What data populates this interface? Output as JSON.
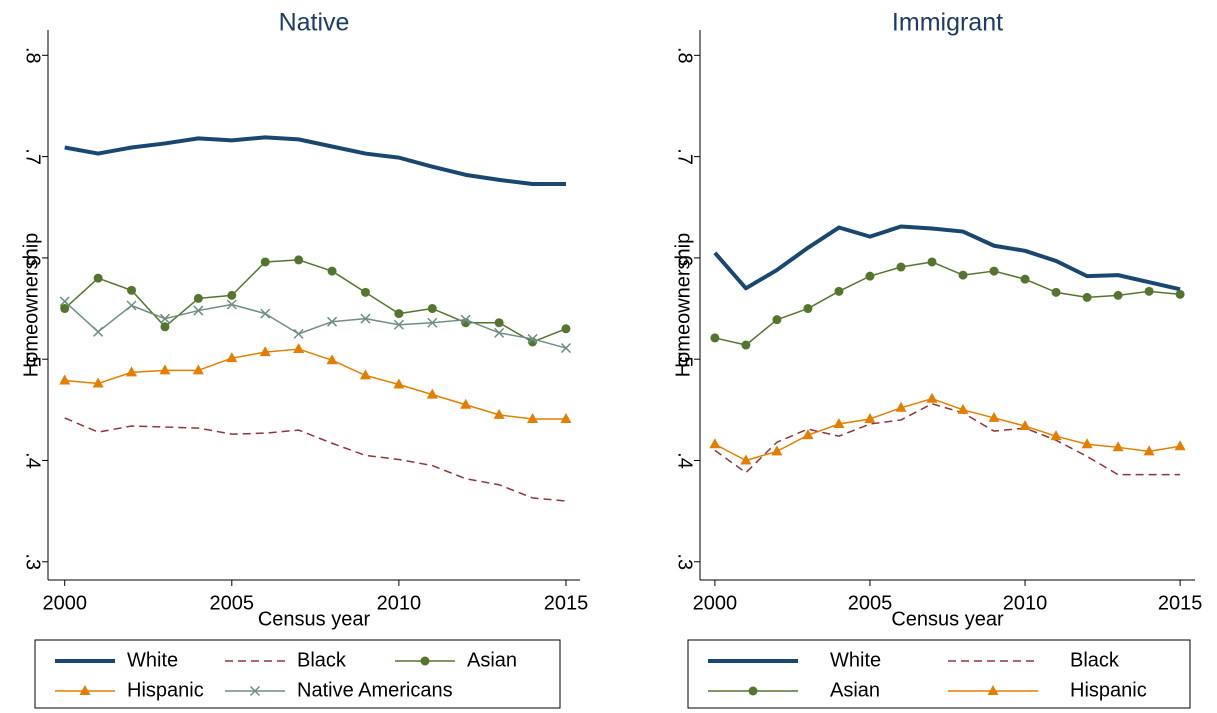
{
  "chart_data": [
    {
      "type": "line",
      "title": "Native",
      "xlabel": "Census year",
      "ylabel": "Homeownership",
      "x": [
        2000,
        2001,
        2002,
        2003,
        2004,
        2005,
        2006,
        2007,
        2008,
        2009,
        2010,
        2011,
        2012,
        2013,
        2014,
        2015
      ],
      "xlim": [
        1999.5,
        2015.42
      ],
      "xticks": [
        2000,
        2005,
        2010,
        2015
      ],
      "ylim": [
        0.282,
        0.825
      ],
      "yticks": [
        {
          "value": 0.3,
          "label": ".3"
        },
        {
          "value": 0.4,
          "label": ".4"
        },
        {
          "value": 0.5,
          "label": ".5"
        },
        {
          "value": 0.6,
          "label": ".6"
        },
        {
          "value": 0.7,
          "label": ".7"
        },
        {
          "value": 0.8,
          "label": ".8"
        }
      ],
      "legend_columns": 3,
      "series": [
        {
          "name": "White",
          "color": "#1a476f",
          "dash": "solid",
          "width": 4,
          "marker": "none",
          "values": [
            0.709,
            0.703,
            0.709,
            0.713,
            0.718,
            0.716,
            0.719,
            0.717,
            0.71,
            0.703,
            0.699,
            0.69,
            0.682,
            0.677,
            0.673,
            0.673
          ]
        },
        {
          "name": "Black",
          "color": "#90353b",
          "dash": "dash",
          "width": 1.5,
          "marker": "none",
          "values": [
            0.442,
            0.428,
            0.434,
            0.433,
            0.432,
            0.426,
            0.427,
            0.43,
            0.417,
            0.405,
            0.401,
            0.395,
            0.382,
            0.376,
            0.363,
            0.36
          ]
        },
        {
          "name": "Asian",
          "color": "#55752f",
          "dash": "solid",
          "width": 1.5,
          "marker": "circle",
          "values": [
            0.55,
            0.58,
            0.568,
            0.532,
            0.56,
            0.563,
            0.596,
            0.598,
            0.587,
            0.566,
            0.545,
            0.55,
            0.536,
            0.536,
            0.517,
            0.53
          ]
        },
        {
          "name": "Hispanic",
          "color": "#e37e00",
          "dash": "solid",
          "width": 1.5,
          "marker": "triangle",
          "values": [
            0.479,
            0.476,
            0.487,
            0.489,
            0.489,
            0.501,
            0.507,
            0.51,
            0.499,
            0.484,
            0.475,
            0.465,
            0.455,
            0.445,
            0.441,
            0.441
          ]
        },
        {
          "name": "Native Americans",
          "color": "#6e8e84",
          "dash": "solid",
          "width": 1.5,
          "marker": "x",
          "values": [
            0.557,
            0.527,
            0.553,
            0.54,
            0.548,
            0.554,
            0.545,
            0.525,
            0.537,
            0.54,
            0.534,
            0.536,
            0.539,
            0.526,
            0.52,
            0.511
          ]
        }
      ]
    },
    {
      "type": "line",
      "title": "Immigrant",
      "xlabel": "Census year",
      "ylabel": "Homeownership",
      "x": [
        2000,
        2001,
        2002,
        2003,
        2004,
        2005,
        2006,
        2007,
        2008,
        2009,
        2010,
        2011,
        2012,
        2013,
        2014,
        2015
      ],
      "xlim": [
        1999.52,
        2015.48
      ],
      "xticks": [
        2000,
        2005,
        2010,
        2015
      ],
      "ylim": [
        0.282,
        0.825
      ],
      "yticks": [
        {
          "value": 0.3,
          "label": ".3"
        },
        {
          "value": 0.4,
          "label": ".4"
        },
        {
          "value": 0.5,
          "label": ".5"
        },
        {
          "value": 0.6,
          "label": ".6"
        },
        {
          "value": 0.7,
          "label": ".7"
        },
        {
          "value": 0.8,
          "label": ".8"
        }
      ],
      "legend_columns": 2,
      "series": [
        {
          "name": "White",
          "color": "#1a476f",
          "dash": "solid",
          "width": 4,
          "marker": "none",
          "values": [
            0.605,
            0.57,
            0.588,
            0.61,
            0.63,
            0.621,
            0.631,
            0.629,
            0.626,
            0.612,
            0.607,
            0.597,
            0.582,
            0.583,
            0.576,
            0.569
          ]
        },
        {
          "name": "Black",
          "color": "#90353b",
          "dash": "dash",
          "width": 1.5,
          "marker": "none",
          "values": [
            0.41,
            0.388,
            0.418,
            0.431,
            0.424,
            0.436,
            0.44,
            0.456,
            0.447,
            0.429,
            0.432,
            0.42,
            0.404,
            0.386,
            0.386,
            0.386
          ]
        },
        {
          "name": "Asian",
          "color": "#55752f",
          "dash": "solid",
          "width": 1.5,
          "marker": "circle",
          "values": [
            0.521,
            0.514,
            0.539,
            0.55,
            0.567,
            0.582,
            0.591,
            0.596,
            0.583,
            0.587,
            0.579,
            0.566,
            0.561,
            0.563,
            0.567,
            0.564
          ]
        },
        {
          "name": "Hispanic",
          "color": "#e37e00",
          "dash": "solid",
          "width": 1.5,
          "marker": "triangle",
          "values": [
            0.416,
            0.4,
            0.409,
            0.425,
            0.436,
            0.441,
            0.452,
            0.461,
            0.45,
            0.442,
            0.434,
            0.424,
            0.416,
            0.413,
            0.409,
            0.414
          ]
        }
      ]
    }
  ]
}
